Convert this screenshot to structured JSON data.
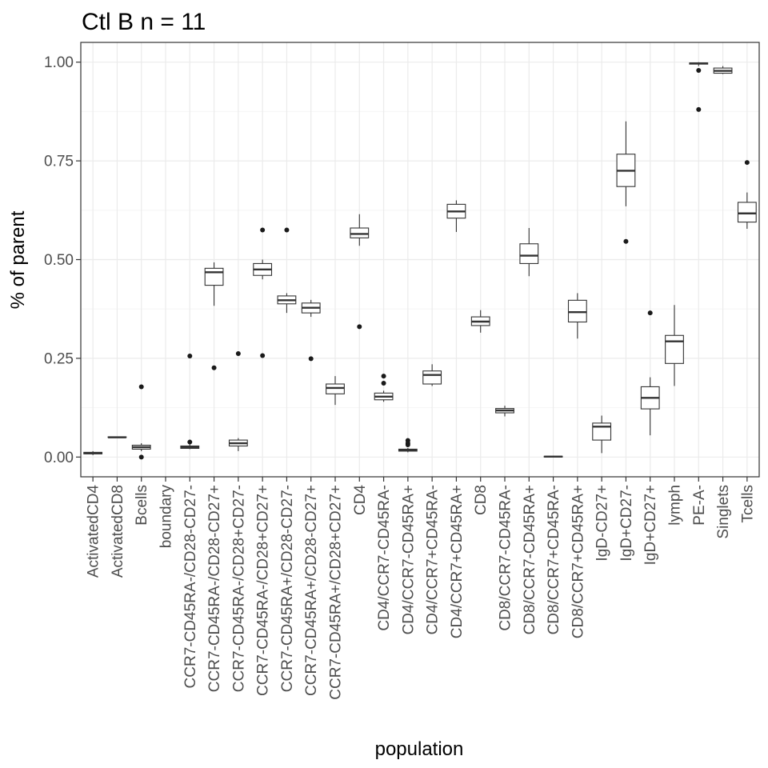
{
  "chart_data": {
    "type": "box",
    "title": "Ctl B n = 11",
    "xlabel": "population",
    "ylabel": "% of parent",
    "ylim": [
      -0.05,
      1.05
    ],
    "yticks": [
      0.0,
      0.25,
      0.5,
      0.75,
      1.0
    ],
    "ytick_labels": [
      "0.00",
      "0.25",
      "0.50",
      "0.75",
      "1.00"
    ],
    "grid": true,
    "legend": "none",
    "categories": [
      "ActivatedCD4",
      "ActivatedCD8",
      "Bcells",
      "boundary",
      "CCR7-CD45RA-/CD28-CD27-",
      "CCR7-CD45RA-/CD28-CD27+",
      "CCR7-CD45RA-/CD28+CD27-",
      "CCR7-CD45RA-/CD28+CD27+",
      "CCR7-CD45RA+/CD28-CD27-",
      "CCR7-CD45RA+/CD28-CD27+",
      "CCR7-CD45RA+/CD28+CD27+",
      "CD4",
      "CD4/CCR7-CD45RA-",
      "CD4/CCR7-CD45RA+",
      "CD4/CCR7+CD45RA-",
      "CD4/CCR7+CD45RA+",
      "CD8",
      "CD8/CCR7-CD45RA-",
      "CD8/CCR7-CD45RA+",
      "CD8/CCR7+CD45RA-",
      "CD8/CCR7+CD45RA+",
      "IgD-CD27+",
      "IgD+CD27-",
      "IgD+CD27+",
      "lymph",
      "PE-A-",
      "Singlets",
      "Tcells"
    ],
    "boxes": [
      {
        "whisker_low": 0.005,
        "q1": 0.008,
        "median": 0.01,
        "q3": 0.012,
        "whisker_high": 0.015,
        "outliers": []
      },
      {
        "whisker_low": 0.05,
        "q1": 0.05,
        "median": 0.05,
        "q3": 0.051,
        "whisker_high": 0.051,
        "outliers": []
      },
      {
        "whisker_low": 0.015,
        "q1": 0.02,
        "median": 0.025,
        "q3": 0.03,
        "whisker_high": 0.035,
        "outliers": [
          0.178,
          0.0
        ]
      },
      null,
      {
        "whisker_low": 0.02,
        "q1": 0.022,
        "median": 0.025,
        "q3": 0.028,
        "whisker_high": 0.032,
        "outliers": [
          0.256,
          0.038
        ]
      },
      {
        "whisker_low": 0.383,
        "q1": 0.435,
        "median": 0.468,
        "q3": 0.478,
        "whisker_high": 0.493,
        "outliers": [
          0.226
        ]
      },
      {
        "whisker_low": 0.015,
        "q1": 0.028,
        "median": 0.035,
        "q3": 0.043,
        "whisker_high": 0.048,
        "outliers": [
          0.262
        ]
      },
      {
        "whisker_low": 0.45,
        "q1": 0.46,
        "median": 0.475,
        "q3": 0.49,
        "whisker_high": 0.5,
        "outliers": [
          0.575,
          0.257
        ]
      },
      {
        "whisker_low": 0.365,
        "q1": 0.388,
        "median": 0.397,
        "q3": 0.408,
        "whisker_high": 0.415,
        "outliers": [
          0.575
        ]
      },
      {
        "whisker_low": 0.355,
        "q1": 0.365,
        "median": 0.378,
        "q3": 0.39,
        "whisker_high": 0.398,
        "outliers": [
          0.249
        ]
      },
      {
        "whisker_low": 0.132,
        "q1": 0.16,
        "median": 0.175,
        "q3": 0.185,
        "whisker_high": 0.205,
        "outliers": []
      },
      {
        "whisker_low": 0.535,
        "q1": 0.555,
        "median": 0.565,
        "q3": 0.58,
        "whisker_high": 0.615,
        "outliers": [
          0.33
        ]
      },
      {
        "whisker_low": 0.14,
        "q1": 0.145,
        "median": 0.153,
        "q3": 0.162,
        "whisker_high": 0.168,
        "outliers": [
          0.205,
          0.187
        ]
      },
      {
        "whisker_low": 0.012,
        "q1": 0.015,
        "median": 0.018,
        "q3": 0.02,
        "whisker_high": 0.023,
        "outliers": [
          0.042,
          0.035,
          0.031
        ]
      },
      {
        "whisker_low": 0.18,
        "q1": 0.185,
        "median": 0.208,
        "q3": 0.218,
        "whisker_high": 0.235,
        "outliers": []
      },
      {
        "whisker_low": 0.57,
        "q1": 0.605,
        "median": 0.622,
        "q3": 0.64,
        "whisker_high": 0.65,
        "outliers": []
      },
      {
        "whisker_low": 0.315,
        "q1": 0.333,
        "median": 0.343,
        "q3": 0.355,
        "whisker_high": 0.372,
        "outliers": []
      },
      {
        "whisker_low": 0.103,
        "q1": 0.112,
        "median": 0.118,
        "q3": 0.123,
        "whisker_high": 0.13,
        "outliers": []
      },
      {
        "whisker_low": 0.458,
        "q1": 0.49,
        "median": 0.51,
        "q3": 0.54,
        "whisker_high": 0.58,
        "outliers": []
      },
      {
        "whisker_low": 0.0,
        "q1": 0.0,
        "median": 0.001,
        "q3": 0.002,
        "whisker_high": 0.003,
        "outliers": []
      },
      {
        "whisker_low": 0.3,
        "q1": 0.342,
        "median": 0.367,
        "q3": 0.397,
        "whisker_high": 0.415,
        "outliers": []
      },
      {
        "whisker_low": 0.01,
        "q1": 0.043,
        "median": 0.077,
        "q3": 0.086,
        "whisker_high": 0.105,
        "outliers": []
      },
      {
        "whisker_low": 0.635,
        "q1": 0.685,
        "median": 0.725,
        "q3": 0.767,
        "whisker_high": 0.85,
        "outliers": [
          0.546
        ]
      },
      {
        "whisker_low": 0.055,
        "q1": 0.122,
        "median": 0.15,
        "q3": 0.178,
        "whisker_high": 0.202,
        "outliers": [
          0.365
        ]
      },
      {
        "whisker_low": 0.18,
        "q1": 0.237,
        "median": 0.293,
        "q3": 0.308,
        "whisker_high": 0.385,
        "outliers": []
      },
      {
        "whisker_low": 0.99,
        "q1": 0.995,
        "median": 0.997,
        "q3": 0.998,
        "whisker_high": 1.0,
        "outliers": [
          0.979,
          0.88
        ]
      },
      {
        "whisker_low": 0.97,
        "q1": 0.972,
        "median": 0.978,
        "q3": 0.985,
        "whisker_high": 0.99,
        "outliers": []
      },
      {
        "whisker_low": 0.578,
        "q1": 0.595,
        "median": 0.617,
        "q3": 0.645,
        "whisker_high": 0.67,
        "outliers": [
          0.746
        ]
      }
    ],
    "colors": {
      "panel_border": "#333333",
      "grid_major": "#ebebeb",
      "grid_minor": "#f5f5f5",
      "box_stroke": "#333333",
      "box_fill": "#ffffff",
      "outlier": "#1a1a1a",
      "tick_text": "#4d4d4d"
    }
  }
}
